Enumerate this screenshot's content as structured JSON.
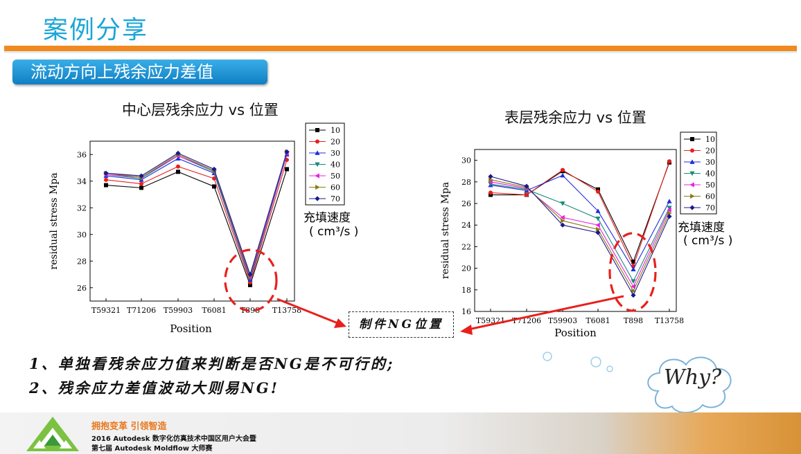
{
  "slide": {
    "title": "案例分享",
    "subtitle": "流动方向上残余应力差值"
  },
  "charts": {
    "left_title": "中心层残余应力 vs 位置",
    "right_title": "表层残余应力 vs 位置",
    "fill_speed_label": "充填速度",
    "fill_speed_unit": "( cm³/s )"
  },
  "annotations": {
    "ng_box": "制件NG位置",
    "note1": "1、单独看残余应力值来判断是否NG是不可行的;",
    "note2": "2、残余应力差值波动大则易NG!",
    "why": "Why?"
  },
  "footer": {
    "slogan": "拥抱变革 引领智造",
    "line1": "2016 Autodesk 数字化仿真技术中国区用户大会暨",
    "line2": "第七届 Autodesk Moldflow 大师赛"
  },
  "colors": {
    "accent_orange": "#f08a1e",
    "title_blue": "#1ba6d8",
    "ng_red": "#e8201c"
  },
  "chart_data": [
    {
      "type": "line",
      "title": "中心层残余应力 vs 位置",
      "xlabel": "Position",
      "ylabel": "residual stress Mpa",
      "categories": [
        "T59321",
        "T71206",
        "T59903",
        "T6081",
        "T898",
        "T13758"
      ],
      "ylim": [
        25,
        37
      ],
      "yticks": [
        26,
        28,
        30,
        32,
        34,
        36
      ],
      "legend_position": "right",
      "series": [
        {
          "name": "10",
          "color": "#000000",
          "marker": "square",
          "values": [
            33.7,
            33.5,
            34.7,
            33.6,
            26.2,
            34.9
          ]
        },
        {
          "name": "20",
          "color": "#e8201c",
          "marker": "circle",
          "values": [
            34.1,
            33.8,
            35.1,
            34.2,
            26.4,
            35.6
          ]
        },
        {
          "name": "30",
          "color": "#1f2bd8",
          "marker": "triangle-up",
          "values": [
            34.4,
            34.1,
            35.7,
            34.6,
            26.6,
            36.0
          ]
        },
        {
          "name": "40",
          "color": "#1a8a7a",
          "marker": "triangle-down",
          "values": [
            34.5,
            34.2,
            35.9,
            34.7,
            26.7,
            36.1
          ]
        },
        {
          "name": "50",
          "color": "#e820e0",
          "marker": "triangle-left",
          "values": [
            34.5,
            34.3,
            35.9,
            34.8,
            26.8,
            36.1
          ]
        },
        {
          "name": "60",
          "color": "#8a7a10",
          "marker": "triangle-right",
          "values": [
            34.6,
            34.3,
            36.0,
            34.8,
            26.9,
            36.2
          ]
        },
        {
          "name": "70",
          "color": "#1a1a8a",
          "marker": "diamond",
          "values": [
            34.6,
            34.4,
            36.1,
            34.9,
            27.0,
            36.2
          ]
        }
      ]
    },
    {
      "type": "line",
      "title": "表层残余应力 vs 位置",
      "xlabel": "Position",
      "ylabel": "residual stress Mpa",
      "categories": [
        "T59321",
        "T71206",
        "T59903",
        "T6081",
        "T898",
        "T13758"
      ],
      "ylim": [
        16,
        31
      ],
      "yticks": [
        16,
        18,
        20,
        22,
        24,
        26,
        28,
        30
      ],
      "legend_position": "right",
      "series": [
        {
          "name": "10",
          "color": "#000000",
          "marker": "square",
          "values": [
            26.8,
            26.8,
            29.0,
            27.3,
            20.6,
            29.8
          ]
        },
        {
          "name": "20",
          "color": "#e8201c",
          "marker": "circle",
          "values": [
            27.0,
            26.8,
            29.1,
            27.1,
            20.2,
            29.9
          ]
        },
        {
          "name": "30",
          "color": "#1f2bd8",
          "marker": "triangle-up",
          "values": [
            27.7,
            27.2,
            28.6,
            25.3,
            19.9,
            26.2
          ]
        },
        {
          "name": "40",
          "color": "#1a8a7a",
          "marker": "triangle-down",
          "values": [
            27.8,
            27.3,
            26.0,
            24.6,
            18.8,
            25.6
          ]
        },
        {
          "name": "50",
          "color": "#e820e0",
          "marker": "triangle-left",
          "values": [
            28.0,
            27.4,
            24.7,
            24.0,
            18.3,
            25.4
          ]
        },
        {
          "name": "60",
          "color": "#8a7a10",
          "marker": "triangle-right",
          "values": [
            28.2,
            27.5,
            24.4,
            23.6,
            17.9,
            25.1
          ]
        },
        {
          "name": "70",
          "color": "#1a1a8a",
          "marker": "diamond",
          "values": [
            28.5,
            27.6,
            24.0,
            23.3,
            17.5,
            24.8
          ]
        }
      ]
    }
  ]
}
